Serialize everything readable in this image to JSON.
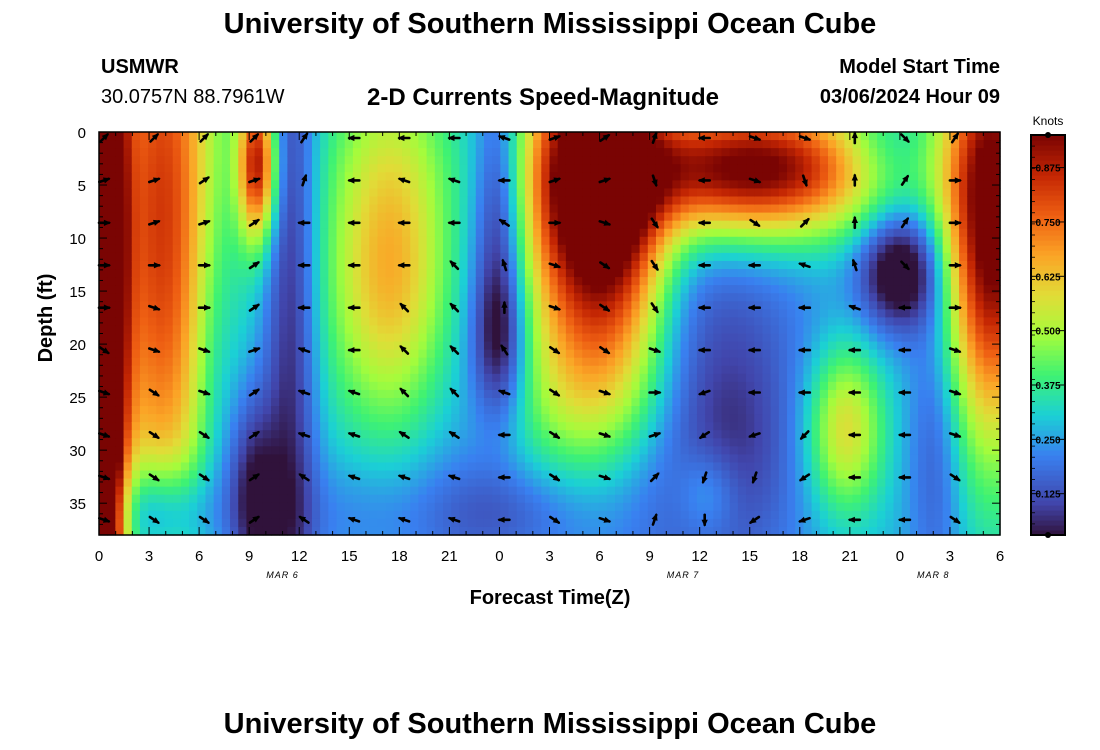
{
  "titles": {
    "top": "University of Southern Mississippi Ocean Cube",
    "bottom": "University of Southern Mississippi Ocean Cube"
  },
  "station": {
    "name": "USMWR",
    "coordinates": "30.0757N  88.7961W"
  },
  "model": {
    "start_label": "Model Start Time",
    "start_value": "03/06/2024 Hour 09"
  },
  "colors": {
    "arrow": "#000000",
    "background": "#ffffff"
  },
  "chart_data": {
    "type": "heatmap",
    "title": "2-D Currents Speed-Magnitude",
    "xlabel": "Forecast Time(Z)",
    "ylabel": "Depth (ft)",
    "x_ticks": [
      "0",
      "3",
      "6",
      "9",
      "12",
      "15",
      "18",
      "21",
      "0",
      "3",
      "6",
      "9",
      "12",
      "15",
      "18",
      "21",
      "0",
      "3",
      "6"
    ],
    "x_range_hours": [
      0,
      54
    ],
    "y_ticks": [
      0,
      5,
      10,
      15,
      20,
      25,
      30,
      35
    ],
    "ylim": [
      0,
      38
    ],
    "day_labels": [
      {
        "text": "MAR 6",
        "hour": 11
      },
      {
        "text": "MAR 7",
        "hour": 35
      },
      {
        "text": "MAR 8",
        "hour": 50
      }
    ],
    "colorbar": {
      "label": "Knots",
      "ticks": [
        "0.875",
        "0.750",
        "0.625",
        "0.500",
        "0.375",
        "0.250",
        "0.125"
      ],
      "tick_values": [
        0.875,
        0.75,
        0.625,
        0.5,
        0.375,
        0.25,
        0.125
      ],
      "range": [
        0.03,
        0.95
      ]
    },
    "speed_model_knots": [
      {
        "t": 0.3,
        "d": 19,
        "st": 0.9,
        "sd": 40,
        "v": 0.95
      },
      {
        "t": 3.8,
        "d": 8,
        "st": 2.4,
        "sd": 24,
        "v": 0.55
      },
      {
        "t": 3.5,
        "d": 36,
        "st": 2.2,
        "sd": 3.5,
        "v": -0.25
      },
      {
        "t": 6.8,
        "d": 22,
        "st": 1.0,
        "sd": 12,
        "v": -0.1
      },
      {
        "t": 9.5,
        "d": 3,
        "st": 0.8,
        "sd": 5,
        "v": 0.6
      },
      {
        "t": 9.2,
        "d": 34,
        "st": 1.1,
        "sd": 7,
        "v": -0.25
      },
      {
        "t": 11.5,
        "d": 18,
        "st": 1.1,
        "sd": 30,
        "v": -0.22
      },
      {
        "t": 17.5,
        "d": 13,
        "st": 2.7,
        "sd": 10,
        "v": 0.38
      },
      {
        "t": 18,
        "d": 0,
        "st": 3.5,
        "sd": 6,
        "v": 0.08
      },
      {
        "t": 16,
        "d": 36,
        "st": 5,
        "sd": 4,
        "v": -0.07
      },
      {
        "t": 21.5,
        "d": 20,
        "st": 2,
        "sd": 25,
        "v": -0.05
      },
      {
        "t": 24,
        "d": 8,
        "st": 1.1,
        "sd": 10,
        "v": -0.25
      },
      {
        "t": 24,
        "d": 20,
        "st": 1.2,
        "sd": 5,
        "v": -0.2
      },
      {
        "t": 24.8,
        "d": 36,
        "st": 3,
        "sd": 3.5,
        "v": -0.1
      },
      {
        "t": 29.5,
        "d": 6,
        "st": 2.8,
        "sd": 11,
        "v": 0.85
      },
      {
        "t": 29.8,
        "d": 25,
        "st": 3.5,
        "sd": 6,
        "v": 0.2
      },
      {
        "t": 32,
        "d": 12,
        "st": 1.8,
        "sd": 8,
        "v": 0.15
      },
      {
        "t": 39,
        "d": 3.5,
        "st": 5.5,
        "sd": 4.5,
        "v": 0.75
      },
      {
        "t": 36,
        "d": 25,
        "st": 5,
        "sd": 15,
        "v": -0.18
      },
      {
        "t": 38,
        "d": 30,
        "st": 2.3,
        "sd": 7,
        "v": -0.06
      },
      {
        "t": 36.5,
        "d": 34,
        "st": 1.3,
        "sd": 3,
        "v": 0.12
      },
      {
        "t": 44.7,
        "d": 28,
        "st": 1.6,
        "sd": 5.5,
        "v": 0.33
      },
      {
        "t": 48,
        "d": 13,
        "st": 1.7,
        "sd": 4,
        "v": -0.35
      },
      {
        "t": 47,
        "d": 2,
        "st": 2,
        "sd": 3,
        "v": -0.1
      },
      {
        "t": 53.5,
        "d": 8,
        "st": 2.1,
        "sd": 14,
        "v": 0.75
      },
      {
        "t": 50.2,
        "d": 28,
        "st": 1.2,
        "sd": 12,
        "v": -0.15
      }
    ],
    "vectors": [
      {
        "t": 0,
        "d": [
          [
            0,
            3,
            -3
          ],
          [
            4,
            3,
            -1
          ],
          [
            8,
            3,
            0
          ],
          [
            12,
            3,
            0
          ],
          [
            16,
            3,
            0
          ],
          [
            20,
            3,
            2
          ],
          [
            24,
            3,
            1
          ],
          [
            28,
            3,
            1
          ],
          [
            32,
            3,
            1
          ],
          [
            36,
            3,
            1
          ]
        ]
      },
      {
        "t": 3,
        "d": [
          [
            0,
            3,
            -3
          ],
          [
            4,
            3,
            -1
          ],
          [
            8,
            3,
            -1
          ],
          [
            12,
            3,
            0
          ],
          [
            16,
            3,
            1
          ],
          [
            20,
            3,
            1
          ],
          [
            24,
            3,
            2
          ],
          [
            28,
            3,
            2
          ],
          [
            32,
            3,
            2
          ],
          [
            36,
            3,
            2
          ]
        ]
      },
      {
        "t": 6,
        "d": [
          [
            0,
            3,
            -3
          ],
          [
            4,
            3,
            -2
          ],
          [
            8,
            3,
            -1
          ],
          [
            12,
            3,
            0
          ],
          [
            16,
            3,
            0
          ],
          [
            20,
            3,
            1
          ],
          [
            24,
            3,
            1
          ],
          [
            28,
            3,
            2
          ],
          [
            32,
            3,
            2
          ],
          [
            36,
            3,
            2
          ]
        ]
      },
      {
        "t": 9,
        "d": [
          [
            0,
            3,
            -3
          ],
          [
            4,
            3,
            -1
          ],
          [
            8,
            3,
            -2
          ],
          [
            12,
            3,
            -2
          ],
          [
            16,
            3,
            -2
          ],
          [
            20,
            3,
            -1
          ],
          [
            24,
            3,
            -2
          ],
          [
            28,
            3,
            -2
          ],
          [
            32,
            3,
            -2
          ],
          [
            36,
            3,
            -2
          ]
        ]
      },
      {
        "t": 12,
        "d": [
          [
            0,
            2,
            -3
          ],
          [
            4,
            1,
            -3
          ],
          [
            8,
            -3,
            0
          ],
          [
            12,
            -3,
            0
          ],
          [
            16,
            -3,
            0
          ],
          [
            20,
            -3,
            -1
          ],
          [
            24,
            -3,
            -1
          ],
          [
            28,
            -3,
            -1
          ],
          [
            32,
            -3,
            -2
          ],
          [
            36,
            -3,
            -2
          ]
        ]
      },
      {
        "t": 15,
        "d": [
          [
            0,
            -3,
            0
          ],
          [
            4,
            -3,
            0
          ],
          [
            8,
            -3,
            0
          ],
          [
            12,
            -3,
            0
          ],
          [
            16,
            -3,
            0
          ],
          [
            20,
            -3,
            0
          ],
          [
            24,
            -3,
            -1
          ],
          [
            28,
            -3,
            -1
          ],
          [
            32,
            -3,
            -1
          ],
          [
            36,
            -3,
            -1
          ]
        ]
      },
      {
        "t": 18,
        "d": [
          [
            0,
            -3,
            0
          ],
          [
            4,
            -3,
            -1
          ],
          [
            8,
            -3,
            0
          ],
          [
            12,
            -3,
            0
          ],
          [
            16,
            -2,
            -2
          ],
          [
            20,
            -2,
            -2
          ],
          [
            24,
            -2,
            -2
          ],
          [
            28,
            -3,
            -2
          ],
          [
            32,
            -3,
            -1
          ],
          [
            36,
            -3,
            -1
          ]
        ]
      },
      {
        "t": 21,
        "d": [
          [
            0,
            -3,
            0
          ],
          [
            4,
            -3,
            -1
          ],
          [
            8,
            -3,
            0
          ],
          [
            12,
            -2,
            -2
          ],
          [
            16,
            -2,
            -2
          ],
          [
            20,
            -2,
            -2
          ],
          [
            24,
            -2,
            -2
          ],
          [
            28,
            -3,
            -2
          ],
          [
            32,
            -3,
            -1
          ],
          [
            36,
            -3,
            -1
          ]
        ]
      },
      {
        "t": 24,
        "d": [
          [
            0,
            -3,
            -1
          ],
          [
            4,
            -3,
            0
          ],
          [
            8,
            -3,
            -2
          ],
          [
            12,
            -1,
            -3
          ],
          [
            16,
            0,
            -3
          ],
          [
            20,
            -2,
            -3
          ],
          [
            24,
            -3,
            -1
          ],
          [
            28,
            -3,
            0
          ],
          [
            32,
            -3,
            0
          ],
          [
            36,
            -3,
            0
          ]
        ]
      },
      {
        "t": 27,
        "d": [
          [
            0,
            3,
            -1
          ],
          [
            4,
            3,
            -1
          ],
          [
            8,
            3,
            0
          ],
          [
            12,
            3,
            1
          ],
          [
            16,
            3,
            1
          ],
          [
            20,
            3,
            2
          ],
          [
            24,
            3,
            2
          ],
          [
            28,
            3,
            2
          ],
          [
            32,
            3,
            2
          ],
          [
            36,
            3,
            2
          ]
        ]
      },
      {
        "t": 30,
        "d": [
          [
            0,
            3,
            -2
          ],
          [
            4,
            3,
            -1
          ],
          [
            8,
            3,
            1
          ],
          [
            12,
            3,
            2
          ],
          [
            16,
            3,
            2
          ],
          [
            20,
            3,
            2
          ],
          [
            24,
            3,
            1
          ],
          [
            28,
            3,
            1
          ],
          [
            32,
            3,
            1
          ],
          [
            36,
            3,
            1
          ]
        ]
      },
      {
        "t": 33,
        "d": [
          [
            0,
            1,
            -3
          ],
          [
            4,
            1,
            3
          ],
          [
            8,
            2,
            3
          ],
          [
            12,
            2,
            3
          ],
          [
            16,
            2,
            3
          ],
          [
            20,
            3,
            1
          ],
          [
            24,
            3,
            0
          ],
          [
            28,
            3,
            -1
          ],
          [
            32,
            2,
            -2
          ],
          [
            36,
            1,
            -3
          ]
        ]
      },
      {
        "t": 36,
        "d": [
          [
            0,
            -3,
            0
          ],
          [
            4,
            -3,
            0
          ],
          [
            8,
            -3,
            0
          ],
          [
            12,
            -3,
            0
          ],
          [
            16,
            -3,
            0
          ],
          [
            20,
            -3,
            0
          ],
          [
            24,
            -3,
            1
          ],
          [
            28,
            -3,
            2
          ],
          [
            32,
            -1,
            3
          ],
          [
            36,
            0,
            3
          ]
        ]
      },
      {
        "t": 39,
        "d": [
          [
            0,
            3,
            1
          ],
          [
            4,
            3,
            1
          ],
          [
            8,
            3,
            2
          ],
          [
            12,
            -3,
            0
          ],
          [
            16,
            -3,
            0
          ],
          [
            20,
            -3,
            0
          ],
          [
            24,
            -3,
            0
          ],
          [
            28,
            -3,
            1
          ],
          [
            32,
            -1,
            3
          ],
          [
            36,
            -3,
            2
          ]
        ]
      },
      {
        "t": 42,
        "d": [
          [
            0,
            3,
            1
          ],
          [
            4,
            1,
            3
          ],
          [
            8,
            2,
            -2
          ],
          [
            12,
            -3,
            -1
          ],
          [
            16,
            -3,
            0
          ],
          [
            20,
            -3,
            0
          ],
          [
            24,
            -3,
            0
          ],
          [
            28,
            -2,
            2
          ],
          [
            32,
            -3,
            2
          ],
          [
            36,
            -3,
            1
          ]
        ]
      },
      {
        "t": 45,
        "d": [
          [
            0,
            0,
            -3
          ],
          [
            4,
            0,
            -3
          ],
          [
            8,
            0,
            -3
          ],
          [
            12,
            -1,
            -3
          ],
          [
            16,
            -3,
            -1
          ],
          [
            20,
            -3,
            0
          ],
          [
            24,
            -3,
            0
          ],
          [
            28,
            -3,
            0
          ],
          [
            32,
            -3,
            0
          ],
          [
            36,
            -3,
            0
          ]
        ]
      },
      {
        "t": 48,
        "d": [
          [
            0,
            3,
            3
          ],
          [
            4,
            2,
            -3
          ],
          [
            8,
            2,
            -3
          ],
          [
            12,
            3,
            3
          ],
          [
            16,
            -3,
            0
          ],
          [
            20,
            -3,
            0
          ],
          [
            24,
            -3,
            0
          ],
          [
            28,
            -3,
            0
          ],
          [
            32,
            -3,
            0
          ],
          [
            36,
            -3,
            0
          ]
        ]
      },
      {
        "t": 51,
        "d": [
          [
            0,
            2,
            -3
          ],
          [
            4,
            3,
            0
          ],
          [
            8,
            3,
            0
          ],
          [
            12,
            3,
            0
          ],
          [
            16,
            3,
            0
          ],
          [
            20,
            3,
            1
          ],
          [
            24,
            3,
            1
          ],
          [
            28,
            3,
            1
          ],
          [
            32,
            3,
            2
          ],
          [
            36,
            3,
            2
          ]
        ]
      }
    ]
  }
}
